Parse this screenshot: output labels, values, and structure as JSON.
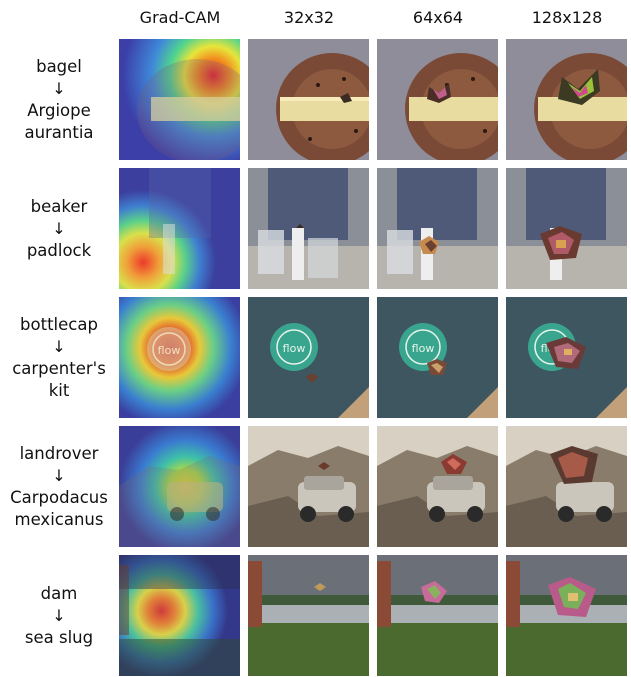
{
  "headers": [
    "Grad-CAM",
    "32x32",
    "64x64",
    "128x128"
  ],
  "rows": [
    {
      "source": "bagel",
      "arrow": "↓",
      "target": [
        "Argiope",
        "aurantia"
      ]
    },
    {
      "source": "beaker",
      "arrow": "↓",
      "target": [
        "padlock"
      ]
    },
    {
      "source": "bottlecap",
      "arrow": "↓",
      "target": [
        "carpenter's",
        "kit"
      ]
    },
    {
      "source": "landrover",
      "arrow": "↓",
      "target": [
        "Carpodacus",
        "mexicanus"
      ]
    },
    {
      "source": "dam",
      "arrow": "↓",
      "target": [
        "sea slug"
      ]
    }
  ],
  "bottlecap_text": "flow"
}
